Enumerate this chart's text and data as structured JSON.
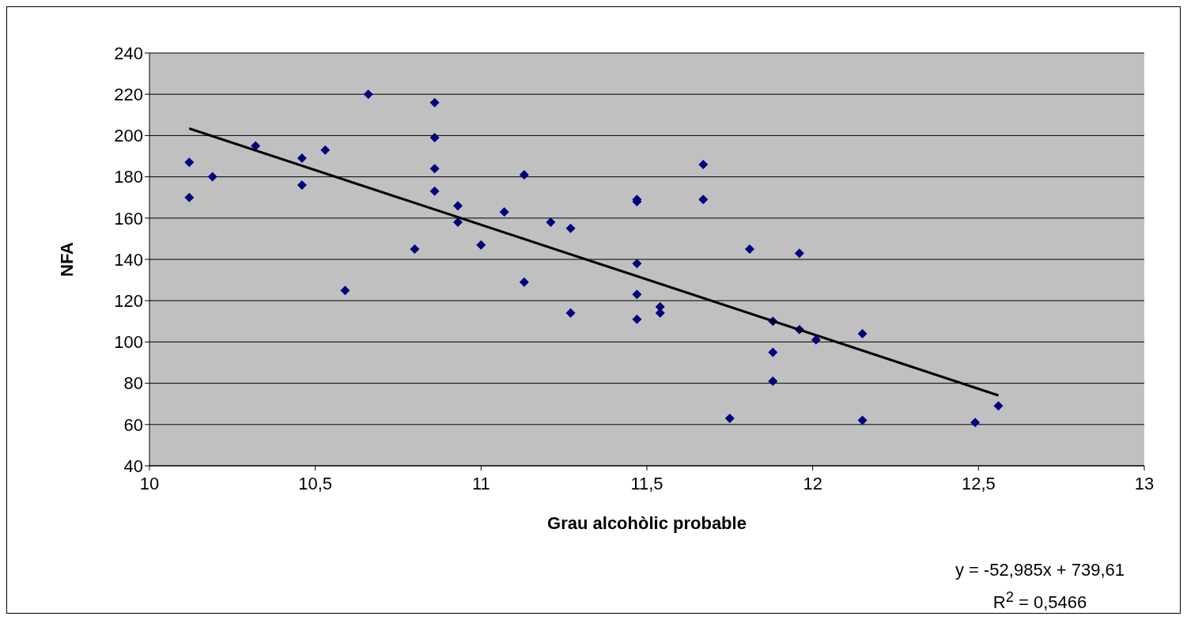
{
  "chart_data": {
    "type": "scatter",
    "xlabel": "Grau alcohòlic probable",
    "ylabel": "NFA",
    "xlim": [
      10,
      13
    ],
    "xticks": [
      10,
      {
        "value": 10.5,
        "label": "10,5"
      },
      11,
      {
        "value": 11.5,
        "label": "11,5"
      },
      12,
      {
        "value": 12.5,
        "label": "12,5"
      },
      13
    ],
    "ylim": [
      40,
      240
    ],
    "yticks": [
      40,
      60,
      80,
      100,
      120,
      140,
      160,
      180,
      200,
      220,
      240
    ],
    "grid": "y",
    "series": [
      {
        "marker": "diamond",
        "color": "#000080",
        "x": [
          10.12,
          10.12,
          10.19,
          10.32,
          10.46,
          10.46,
          10.53,
          10.59,
          10.66,
          10.8,
          10.86,
          10.86,
          10.86,
          10.86,
          10.93,
          10.93,
          11.0,
          11.07,
          11.13,
          11.13,
          11.21,
          11.27,
          11.27,
          11.47,
          11.47,
          11.47,
          11.47,
          11.47,
          11.54,
          11.54,
          11.67,
          11.67,
          11.75,
          11.81,
          11.88,
          11.88,
          11.88,
          11.96,
          11.96,
          12.01,
          12.15,
          12.15,
          12.49,
          12.56
        ],
        "values": [
          187,
          170,
          180,
          195,
          189,
          176,
          193,
          125,
          220,
          145,
          216,
          199,
          184,
          173,
          166,
          158,
          147,
          163,
          181,
          129,
          158,
          155,
          114,
          169,
          168,
          138,
          123,
          111,
          117,
          114,
          186,
          169,
          63,
          145,
          110,
          95,
          81,
          143,
          106,
          101,
          104,
          62,
          61,
          69
        ]
      },
      {
        "type": "line",
        "color": "#000000",
        "x": [
          10.12,
          12.56
        ],
        "values": [
          203.4,
          74.1
        ]
      }
    ],
    "annotations": [
      "y = -52,985x + 739,61",
      "R$^{2}$ = 0,5466"
    ]
  }
}
